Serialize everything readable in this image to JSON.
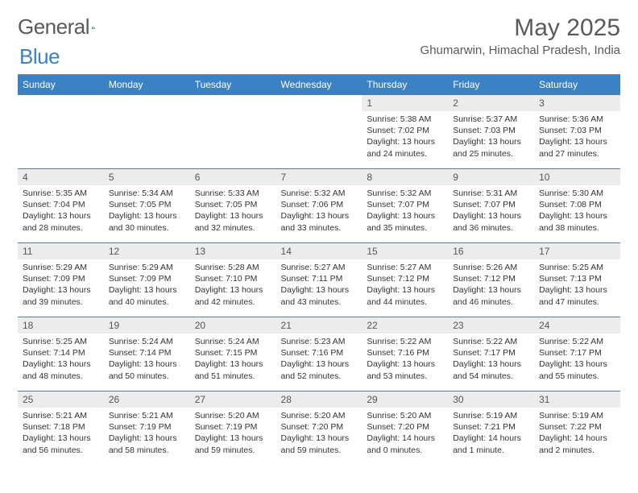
{
  "brand": {
    "general": "General",
    "blue": "Blue"
  },
  "title": "May 2025",
  "location": "Ghumarwin, Himachal Pradesh, India",
  "colors": {
    "header_bg": "#3b82c4",
    "header_text": "#ffffff",
    "daynum_bg": "#ececec",
    "text": "#333333",
    "rule": "#888888",
    "cell_border": "#5a7a9a",
    "page_bg": "#ffffff",
    "title_color": "#5a5a5a"
  },
  "layout": {
    "columns": 7,
    "rows": 5,
    "first_day_column_index": 4,
    "days_in_month": 31
  },
  "weekdays": [
    "Sunday",
    "Monday",
    "Tuesday",
    "Wednesday",
    "Thursday",
    "Friday",
    "Saturday"
  ],
  "days": [
    {
      "n": 1,
      "sr": "5:38 AM",
      "ss": "7:02 PM",
      "dl": "13 hours and 24 minutes."
    },
    {
      "n": 2,
      "sr": "5:37 AM",
      "ss": "7:03 PM",
      "dl": "13 hours and 25 minutes."
    },
    {
      "n": 3,
      "sr": "5:36 AM",
      "ss": "7:03 PM",
      "dl": "13 hours and 27 minutes."
    },
    {
      "n": 4,
      "sr": "5:35 AM",
      "ss": "7:04 PM",
      "dl": "13 hours and 28 minutes."
    },
    {
      "n": 5,
      "sr": "5:34 AM",
      "ss": "7:05 PM",
      "dl": "13 hours and 30 minutes."
    },
    {
      "n": 6,
      "sr": "5:33 AM",
      "ss": "7:05 PM",
      "dl": "13 hours and 32 minutes."
    },
    {
      "n": 7,
      "sr": "5:32 AM",
      "ss": "7:06 PM",
      "dl": "13 hours and 33 minutes."
    },
    {
      "n": 8,
      "sr": "5:32 AM",
      "ss": "7:07 PM",
      "dl": "13 hours and 35 minutes."
    },
    {
      "n": 9,
      "sr": "5:31 AM",
      "ss": "7:07 PM",
      "dl": "13 hours and 36 minutes."
    },
    {
      "n": 10,
      "sr": "5:30 AM",
      "ss": "7:08 PM",
      "dl": "13 hours and 38 minutes."
    },
    {
      "n": 11,
      "sr": "5:29 AM",
      "ss": "7:09 PM",
      "dl": "13 hours and 39 minutes."
    },
    {
      "n": 12,
      "sr": "5:29 AM",
      "ss": "7:09 PM",
      "dl": "13 hours and 40 minutes."
    },
    {
      "n": 13,
      "sr": "5:28 AM",
      "ss": "7:10 PM",
      "dl": "13 hours and 42 minutes."
    },
    {
      "n": 14,
      "sr": "5:27 AM",
      "ss": "7:11 PM",
      "dl": "13 hours and 43 minutes."
    },
    {
      "n": 15,
      "sr": "5:27 AM",
      "ss": "7:12 PM",
      "dl": "13 hours and 44 minutes."
    },
    {
      "n": 16,
      "sr": "5:26 AM",
      "ss": "7:12 PM",
      "dl": "13 hours and 46 minutes."
    },
    {
      "n": 17,
      "sr": "5:25 AM",
      "ss": "7:13 PM",
      "dl": "13 hours and 47 minutes."
    },
    {
      "n": 18,
      "sr": "5:25 AM",
      "ss": "7:14 PM",
      "dl": "13 hours and 48 minutes."
    },
    {
      "n": 19,
      "sr": "5:24 AM",
      "ss": "7:14 PM",
      "dl": "13 hours and 50 minutes."
    },
    {
      "n": 20,
      "sr": "5:24 AM",
      "ss": "7:15 PM",
      "dl": "13 hours and 51 minutes."
    },
    {
      "n": 21,
      "sr": "5:23 AM",
      "ss": "7:16 PM",
      "dl": "13 hours and 52 minutes."
    },
    {
      "n": 22,
      "sr": "5:22 AM",
      "ss": "7:16 PM",
      "dl": "13 hours and 53 minutes."
    },
    {
      "n": 23,
      "sr": "5:22 AM",
      "ss": "7:17 PM",
      "dl": "13 hours and 54 minutes."
    },
    {
      "n": 24,
      "sr": "5:22 AM",
      "ss": "7:17 PM",
      "dl": "13 hours and 55 minutes."
    },
    {
      "n": 25,
      "sr": "5:21 AM",
      "ss": "7:18 PM",
      "dl": "13 hours and 56 minutes."
    },
    {
      "n": 26,
      "sr": "5:21 AM",
      "ss": "7:19 PM",
      "dl": "13 hours and 58 minutes."
    },
    {
      "n": 27,
      "sr": "5:20 AM",
      "ss": "7:19 PM",
      "dl": "13 hours and 59 minutes."
    },
    {
      "n": 28,
      "sr": "5:20 AM",
      "ss": "7:20 PM",
      "dl": "13 hours and 59 minutes."
    },
    {
      "n": 29,
      "sr": "5:20 AM",
      "ss": "7:20 PM",
      "dl": "14 hours and 0 minutes."
    },
    {
      "n": 30,
      "sr": "5:19 AM",
      "ss": "7:21 PM",
      "dl": "14 hours and 1 minute."
    },
    {
      "n": 31,
      "sr": "5:19 AM",
      "ss": "7:22 PM",
      "dl": "14 hours and 2 minutes."
    }
  ],
  "labels": {
    "sunrise": "Sunrise:",
    "sunset": "Sunset:",
    "daylight": "Daylight:"
  }
}
